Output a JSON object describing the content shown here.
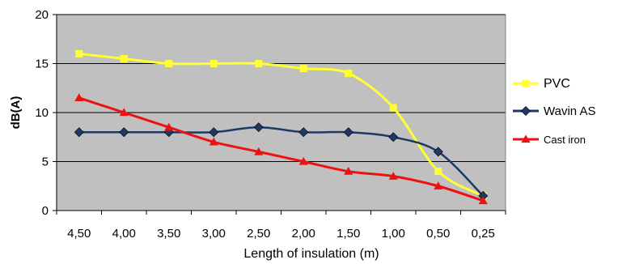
{
  "chart_data": {
    "type": "line",
    "title": "",
    "xlabel": "Length of insulation (m)",
    "ylabel": "dB(A)",
    "categories": [
      "4,50",
      "4,00",
      "3,50",
      "3,00",
      "2,50",
      "2,00",
      "1,50",
      "1,00",
      "0,50",
      "0,25"
    ],
    "ylim": [
      0,
      20
    ],
    "yticks": [
      "0",
      "5",
      "10",
      "15",
      "20"
    ],
    "grid": true,
    "plot_background": "#c0c0c0",
    "legend_position": "right",
    "series": [
      {
        "name": "PVC",
        "color": "#ffff33",
        "marker": "square",
        "values": [
          16,
          15.5,
          15,
          15,
          15,
          14.5,
          14,
          10.5,
          4,
          1.5
        ]
      },
      {
        "name": "Wavin AS",
        "color": "#1f3864",
        "marker": "diamond",
        "values": [
          8,
          8,
          8,
          8,
          8.5,
          8,
          8,
          7.5,
          6,
          1.5
        ]
      },
      {
        "name": "Cast iron",
        "color": "#ee1111",
        "marker": "triangle",
        "values": [
          11.5,
          10,
          8.5,
          7,
          6,
          5,
          4,
          3.5,
          2.5,
          1
        ]
      }
    ]
  }
}
